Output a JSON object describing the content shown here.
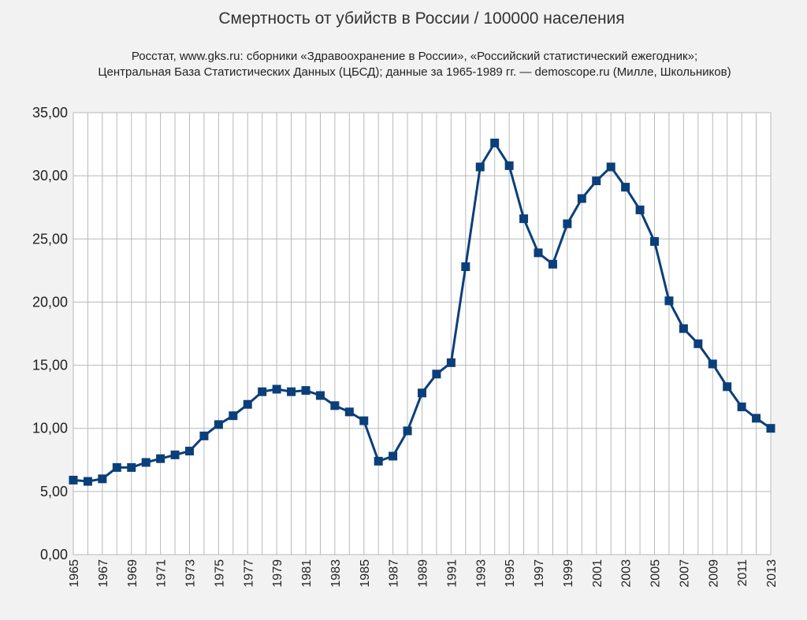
{
  "chart_data": {
    "type": "line",
    "title": "Смертность от убийств в России / 100000 населения",
    "subtitle_lines": [
      "Росстат, www.gks.ru: сборники «Здравоохранение в России», «Российский статистический ежегодник»;",
      "Центральная База Статистических Данных (ЦБСД);  данные за 1965-1989 гг. — demoscope.ru (Милле, Школьников)"
    ],
    "xlabel": "",
    "ylabel": "",
    "ylim": [
      0,
      35
    ],
    "y_ticks": [
      "0,00",
      "5,00",
      "10,00",
      "15,00",
      "20,00",
      "25,00",
      "30,00",
      "35,00"
    ],
    "x_tick_labels": [
      "1965",
      "1967",
      "1969",
      "1971",
      "1973",
      "1975",
      "1977",
      "1979",
      "1981",
      "1983",
      "1985",
      "1987",
      "1989",
      "1991",
      "1993",
      "1995",
      "1997",
      "1999",
      "2001",
      "2003",
      "2005",
      "2007",
      "2009",
      "2011",
      "2013"
    ],
    "grid": true,
    "legend": "none",
    "line_color": "#0b3f7a",
    "x": [
      1965,
      1966,
      1967,
      1968,
      1969,
      1970,
      1971,
      1972,
      1973,
      1974,
      1975,
      1976,
      1977,
      1978,
      1979,
      1980,
      1981,
      1982,
      1983,
      1984,
      1985,
      1986,
      1987,
      1988,
      1989,
      1990,
      1991,
      1992,
      1993,
      1994,
      1995,
      1996,
      1997,
      1998,
      1999,
      2000,
      2001,
      2002,
      2003,
      2004,
      2005,
      2006,
      2007,
      2008,
      2009,
      2010,
      2011,
      2012,
      2013
    ],
    "series": [
      {
        "values": [
          5.9,
          5.8,
          6.0,
          6.9,
          6.9,
          7.3,
          7.6,
          7.9,
          8.2,
          9.4,
          10.3,
          11.0,
          11.9,
          12.9,
          13.1,
          12.9,
          13.0,
          12.6,
          11.8,
          11.3,
          10.6,
          7.4,
          7.8,
          9.8,
          12.8,
          14.3,
          15.2,
          22.8,
          30.7,
          32.6,
          30.8,
          26.6,
          23.9,
          23.0,
          26.2,
          28.2,
          29.6,
          30.7,
          29.1,
          27.3,
          24.8,
          20.1,
          17.9,
          16.7,
          15.1,
          13.3,
          11.7,
          10.8,
          10.0
        ]
      }
    ]
  }
}
